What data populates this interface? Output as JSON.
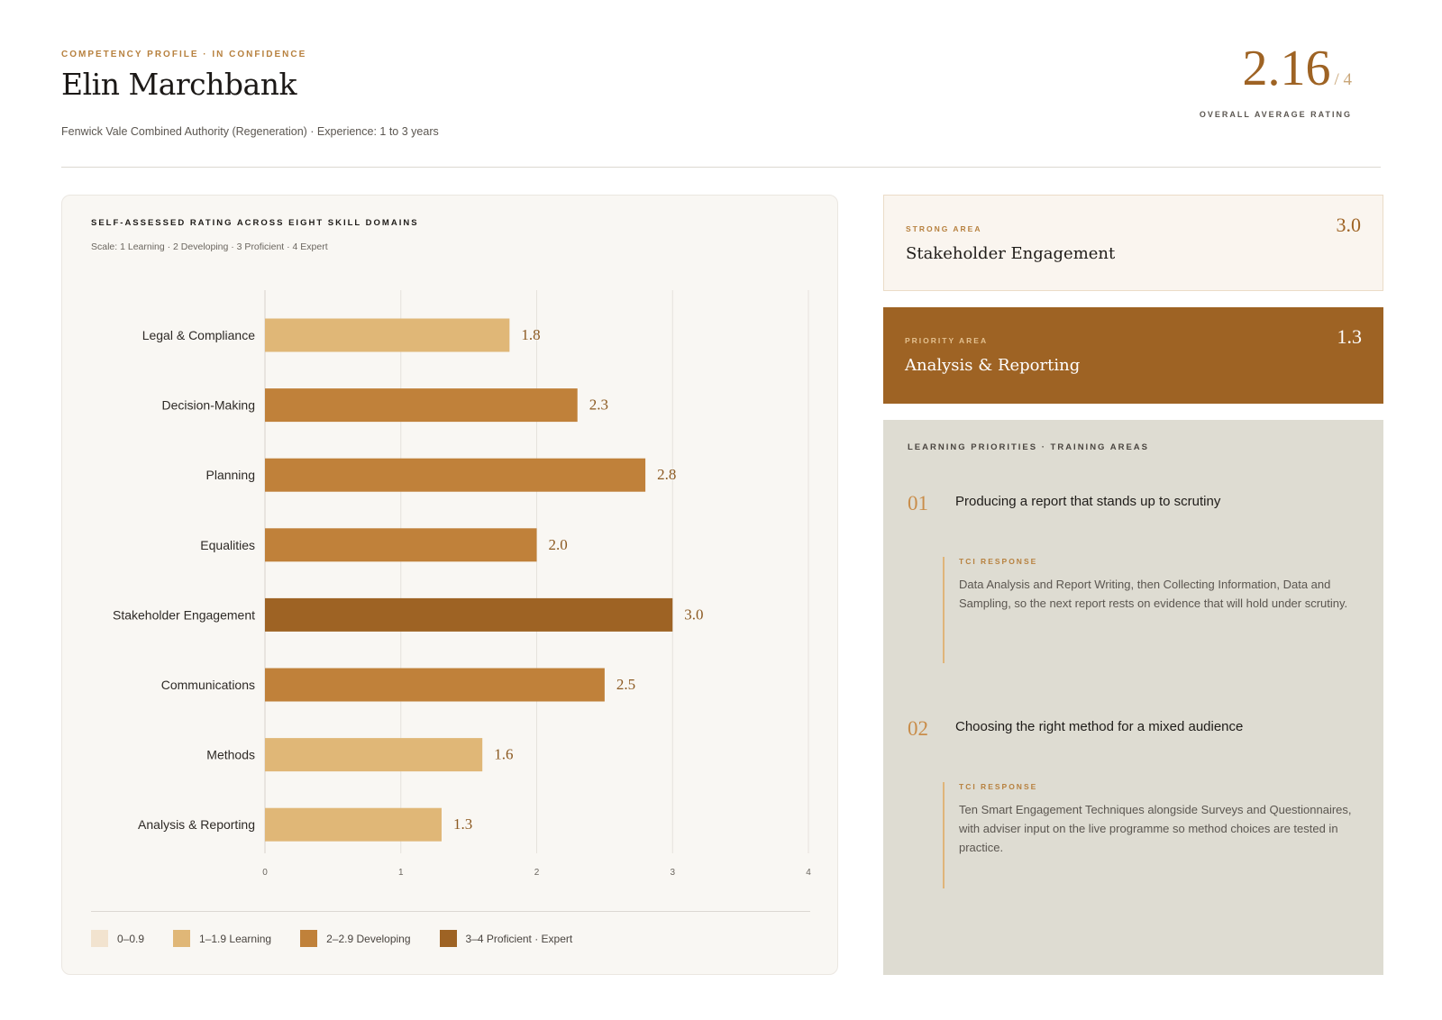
{
  "header": {
    "eyebrow": "COMPETENCY PROFILE · IN CONFIDENCE",
    "name": "Elin Marchbank",
    "subline": "Fenwick Vale Combined Authority (Regeneration) · Experience: 1 to 3 years",
    "overall_value": "2.16",
    "overall_scale": "/ 4",
    "overall_label": "OVERALL AVERAGE RATING"
  },
  "chart_data": {
    "type": "bar",
    "orientation": "horizontal",
    "title": "SELF-ASSESSED RATING ACROSS EIGHT SKILL DOMAINS",
    "subtitle": "Scale: 1 Learning · 2 Developing · 3 Proficient · 4 Expert",
    "categories": [
      "Legal & Compliance",
      "Decision-Making",
      "Planning",
      "Equalities",
      "Stakeholder Engagement",
      "Communications",
      "Methods",
      "Analysis & Reporting"
    ],
    "values": [
      1.8,
      2.3,
      2.8,
      2.0,
      3.0,
      2.5,
      1.6,
      1.3
    ],
    "value_labels": [
      "1.8",
      "2.3",
      "2.8",
      "2.0",
      "3.0",
      "2.5",
      "1.6",
      "1.3"
    ],
    "xlim": [
      0,
      4
    ],
    "x_ticks": [
      "0",
      "1",
      "2",
      "3",
      "4"
    ],
    "grid": true,
    "legend_position": "bottom",
    "legend": [
      {
        "label": "0–0.9",
        "color": "#f2e3cf"
      },
      {
        "label": "1–1.9 Learning",
        "color": "#e0b777"
      },
      {
        "label": "2–2.9 Developing",
        "color": "#c0813a"
      },
      {
        "label": "3–4 Proficient · Expert",
        "color": "#9e6324"
      }
    ]
  },
  "strong": {
    "eyebrow": "STRONG AREA",
    "title": "Stakeholder Engagement",
    "value": "3.0"
  },
  "priority": {
    "eyebrow": "PRIORITY AREA",
    "title": "Analysis & Reporting",
    "value": "1.3"
  },
  "learning": {
    "title": "LEARNING PRIORITIES · TRAINING AREAS",
    "items": [
      {
        "num": "01",
        "heading": "Producing a report that stands up to scrutiny",
        "tci_label": "TCI RESPONSE",
        "tci_text": "Data Analysis and Report Writing, then Collecting Information, Data and Sampling, so the next report rests on evidence that will hold under scrutiny."
      },
      {
        "num": "02",
        "heading": "Choosing the right method for a mixed audience",
        "tci_label": "TCI RESPONSE",
        "tci_text": "Ten Smart Engagement Techniques alongside Surveys and Questionnaires, with adviser input on the live programme so method choices are tested in practice."
      }
    ]
  }
}
